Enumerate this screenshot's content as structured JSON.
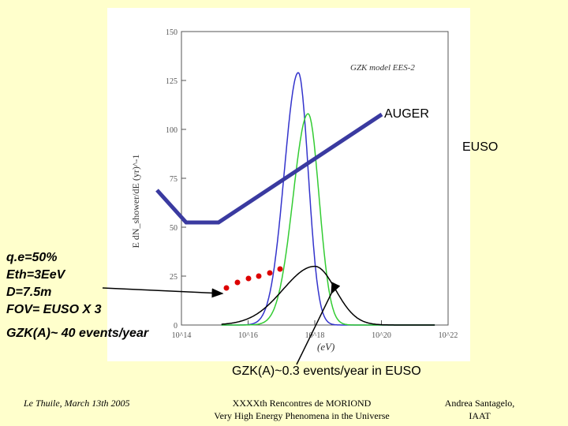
{
  "chart_data": {
    "type": "line",
    "title": "GZK model EES-2",
    "xlabel": "(eV)",
    "ylabel": "E dN_shower/dE (yr)^-1",
    "xlim": [
      100000000000000.0,
      1e+22
    ],
    "ylim": [
      0,
      150
    ],
    "xscale": "log",
    "x_ticks": [
      "10^14",
      "10^16",
      "10^18",
      "10^20",
      "10^22"
    ],
    "y_ticks": [
      0,
      25,
      50,
      75,
      100,
      125,
      150
    ],
    "grid": false,
    "series": [
      {
        "color": "#3333cc",
        "peak_x": 3.2e+17,
        "peak_y": 129
      },
      {
        "color": "#33cc33",
        "peak_x": 6.3e+17,
        "peak_y": 108
      },
      {
        "color": "#000000",
        "peak_x": 1e+18,
        "peak_y": 30
      }
    ]
  },
  "annotations": {
    "auger": "AUGER",
    "euso": "EUSO",
    "gzk_total": "GZK(A)~0.3 events/year in EUSO"
  },
  "params": {
    "qe": "q.e=50%",
    "eth": "Eth=3EeV",
    "d": "D=7.5m",
    "fov": "FOV= EUSO X 3",
    "gzk_a": "GZK(A)~ 40 events/year"
  },
  "footer": {
    "left": "Le Thuile, March 13th 2005",
    "center_line1": "XXXXth Rencontres de MORIOND",
    "center_line2": "Very High Energy Phenomena in the Universe",
    "right_line1": "Andrea Santagelo,",
    "right_line2": "IAAT"
  },
  "colors": {
    "background": "#ffffcc",
    "detector_line": "#3a3aa0",
    "marker_dots": "#dd0000"
  }
}
